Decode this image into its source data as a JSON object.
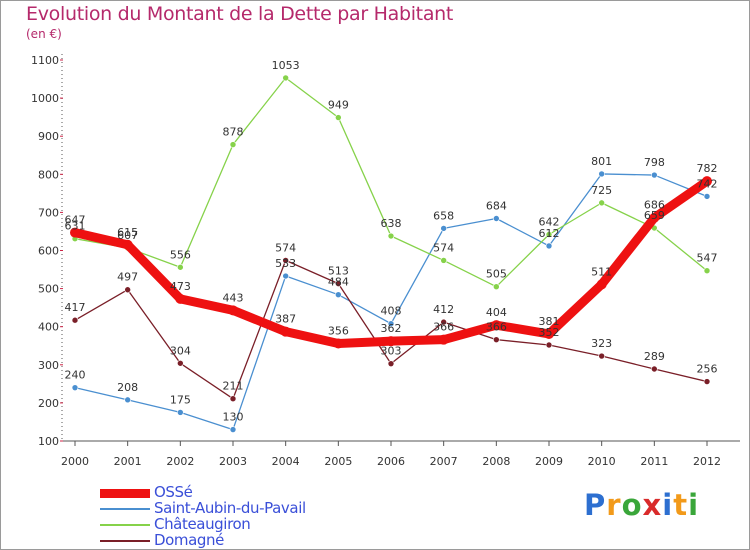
{
  "title": "Evolution du Montant de la Dette par Habitant",
  "subtitle": "(en €)",
  "brand": {
    "letters": [
      "P",
      "r",
      "o",
      "x",
      "i",
      "t",
      "i"
    ],
    "colors": [
      "#2d6fd0",
      "#f29a1a",
      "#3aa63a",
      "#d92b2b",
      "#2d6fd0",
      "#f29a1a",
      "#3aa63a"
    ]
  },
  "chart_data": {
    "type": "line",
    "x": [
      "2000",
      "2001",
      "2002",
      "2003",
      "2004",
      "2005",
      "2006",
      "2007",
      "2008",
      "2009",
      "2010",
      "2011",
      "2012"
    ],
    "ylim": [
      100,
      1100
    ],
    "yticks": [
      "100",
      "200",
      "300",
      "400",
      "500",
      "600",
      "700",
      "800",
      "900",
      "1000",
      "1100"
    ],
    "grid": false,
    "legend_position": "bottom-left",
    "series": [
      {
        "name": "OSSé",
        "color": "#ee1111",
        "values": [
          647,
          615,
          473,
          443,
          387,
          356,
          362,
          366,
          404,
          381,
          511,
          686,
          782
        ]
      },
      {
        "name": "Saint-Aubin-du-Pavail",
        "color": "#4a8fd0",
        "values": [
          240,
          208,
          175,
          130,
          533,
          484,
          408,
          658,
          684,
          612,
          801,
          798,
          742
        ]
      },
      {
        "name": "Châteaugiron",
        "color": "#86d24a",
        "values": [
          631,
          607,
          556,
          878,
          1053,
          949,
          638,
          574,
          505,
          642,
          725,
          659,
          547
        ]
      },
      {
        "name": "Domagné",
        "color": "#7a1f28",
        "values": [
          417,
          497,
          304,
          211,
          574,
          513,
          303,
          412,
          366,
          352,
          323,
          289,
          256
        ]
      }
    ]
  }
}
